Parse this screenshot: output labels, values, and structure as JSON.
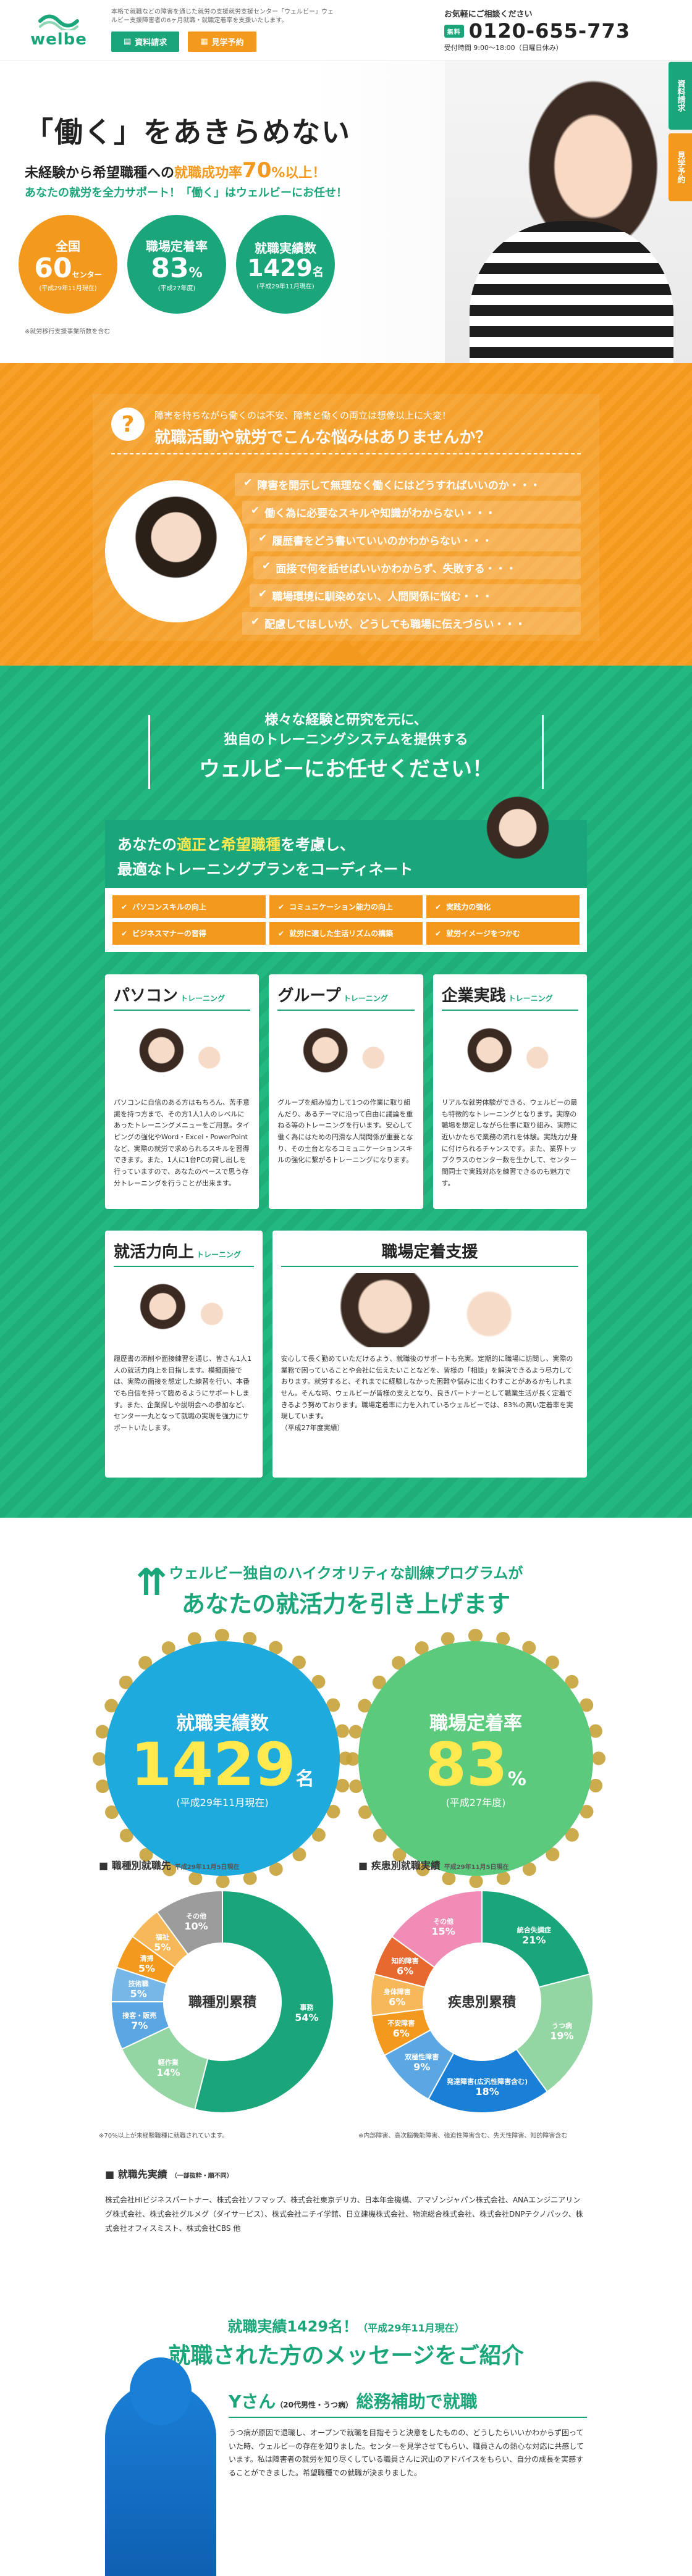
{
  "header": {
    "logo": "welbe",
    "desc": "本格で就職などの障害を通じた就労の支援就労支援センター「ウェルビー」ウェルビー支援障害者の6ヶ月就職・就職定着率を支援いたします。",
    "btn_docs": "資料請求",
    "btn_visit": "見学予約",
    "tel_lead": "お気軽にご相談ください",
    "tel_badge": "無料",
    "tel": "0120-655-773",
    "hours": "受付時間 9:00～18:00（日曜日休み）"
  },
  "side_tabs": [
    "資料請求",
    "見学予約"
  ],
  "hero": {
    "h1": "「働く」をあきらめない",
    "sub_a": "未経験から希望職種への",
    "sub_b": "就職成功率",
    "sub_c": "70",
    "sub_d": "%以上！",
    "sub2": "あなたの就労を全力サポート！「働く」はウェルビーにお任せ！",
    "circles": [
      {
        "label": "全国",
        "value": "60",
        "unit": "センター",
        "note": "(平成29年11月現在)",
        "color": "#f39a1e"
      },
      {
        "label": "職場定着率",
        "value": "83",
        "unit": "%",
        "note": "(平成27年度)",
        "color": "#1aa67a"
      },
      {
        "label": "就職実績数",
        "value": "1429",
        "unit": "名",
        "note": "(平成29年11月現在)",
        "color": "#1aa67a"
      }
    ],
    "foot": "※就労移行支援事業所数を含む"
  },
  "worry": {
    "t1": "障害を持ちながら働くのは不安、障害と働くの両立は想像以上に大変！",
    "t2": "就職活動や就労でこんな悩みはありませんか？",
    "items": [
      "障害を開示して無理なく働くにはどうすればいいのか・・・",
      "働く為に必要なスキルや知識がわからない・・・",
      "履歴書をどう書いていいのかわからない・・・",
      "面接で何を話せばいいかわからず、失敗する・・・",
      "職場環境に馴染めない、人間関係に悩む・・・",
      "配慮してほしいが、どうしても職場に伝えづらい・・・"
    ]
  },
  "training": {
    "t1": "様々な経験と研究を元に、",
    "t2": "独自のトレーニングシステムを提供する",
    "t3": "ウェルビーにお任せください！",
    "coord_a": "あなたの",
    "coord_b": "適正",
    "coord_c": "と",
    "coord_d": "希望職種",
    "coord_e": "を考慮し、",
    "coord_2": "最適なトレーニングプランをコーディネート",
    "grid": [
      "パソコンスキルの向上",
      "コミュニケーション能力の向上",
      "実践力の強化",
      "ビジネスマナーの習得",
      "就労に適した生活リズムの構築",
      "就労イメージをつかむ"
    ],
    "cards": [
      {
        "title": "パソコン",
        "sub": "トレーニング",
        "text": "パソコンに自信のある方はもちろん、苦手意識を持つ方まで、その方1人1人のレベルにあったトレーニングメニューをご用意。タイピングの強化やWord・Excel・PowerPointなど、実際の就労で求められるスキルを習得できます。また、1人に1台PCの貸し出しを行っていますので、あなたのペースで思う存分トレーニングを行うことが出来ます。"
      },
      {
        "title": "グループ",
        "sub": "トレーニング",
        "text": "グループを組み協力して1つの作業に取り組んだり、あるテーマに沿って自由に議論を重ねる等のトレーニングを行います。安心して働く為にはための円滑な人間関係が重要となり、その土台となるコミュニケーションスキルの強化に繋がるトレーニングになります。"
      },
      {
        "title": "企業実践",
        "sub": "トレーニング",
        "text": "リアルな就労体験ができる、ウェルビーの最も特徴的なトレーニングとなります。実際の職場を想定しながら仕事に取り組み、実際に近いかたちで業務の流れを体験。実践力が身に付けられるチャンスです。また、業界トップクラスのセンター数を生かして、センター間同士で実践対応を練習できるのも魅力です。"
      }
    ],
    "card4_title": "就活力向上",
    "card4_sub": "トレーニング",
    "card4_text": "履歴書の添削や面接練習を通じ、皆さん1人1人の就活力向上を目指します。模擬面接では、実際の面接を想定した練習を行い、本番でも自信を持って臨めるようにサポートします。また、企業探しや説明会への参加など、センター一丸となって就職の実現を強力にサポートいたします。",
    "card5_title": "職場定着支援",
    "card5_text": "安心して長く勤めていただけるよう、就職後のサポートも充実。定期的に職場に訪問し、実際の業務で困っていることや会社に伝えたいことなどを、皆様の「相談」を解決できるよう尽力しております。就労すると、それまでに経験しなかった困難や悩みに出くわすことがあるかもしれません。そんな時、ウェルビーが皆様の支えとなり、良きパートナーとして職業生活が長く定着できるよう努めております。職場定着率に力を入れているウェルビーでは、83%の高い定着率を実現しています。",
    "card5_note": "（平成27年度実績）"
  },
  "results": {
    "r1": "ウェルビー独自のハイクオリティな訓練プログラムが",
    "r2": "あなたの就活力を引き上げます",
    "c1_label": "就職実績数",
    "c1_value": "1429",
    "c1_unit": "名",
    "c1_note": "(平成29年11月現在)",
    "c2_label": "職場定着率",
    "c2_value": "83",
    "c2_unit": "%",
    "c2_note": "(平成27年度)",
    "empl_title": "就職先実績",
    "empl_note": "（一部抜粋・順不同）",
    "empl_text": "株式会社HIビジネスパートナー、株式会社ソフマップ、株式会社東京デリカ、日本年金機構、アマゾンジャパン株式会社、ANAエンジニアリング株式会社、株式会社グルメグ（ダイサービス）、株式会社ニチイ学館、日立建機株式会社、物流総合株式会社、株式会社DNPテクノパック、株式会社オフィスミスト、株式会社CBS 他"
  },
  "chart_data": [
    {
      "type": "pie",
      "title": "職種別就職先",
      "subtitle": "平成29年11月5日現在",
      "center_label": "職種別累積",
      "categories": [
        "事務",
        "軽作業",
        "接客・販売",
        "技術職",
        "清掃",
        "福祉",
        "その他"
      ],
      "values": [
        54,
        14,
        7,
        5,
        5,
        5,
        10
      ],
      "colors": [
        "#1aa67a",
        "#93d6a3",
        "#5aa7e3",
        "#76b7e8",
        "#f39a1e",
        "#f7b85a",
        "#9c9c9c"
      ],
      "note": "※70%以上が未経験職種に就職されています。"
    },
    {
      "type": "pie",
      "title": "疾患別就職実績",
      "subtitle": "平成29年11月5日現在",
      "center_label": "疾患別累積",
      "categories": [
        "統合失調症",
        "うつ病",
        "発達障害(広汎性障害含む)",
        "双極性障害",
        "不安障害",
        "身体障害",
        "知的障害",
        "その他"
      ],
      "values": [
        21,
        19,
        18,
        9,
        6,
        6,
        6,
        15
      ],
      "colors": [
        "#1aa67a",
        "#93d6a3",
        "#1a7fd6",
        "#5aa7e3",
        "#f39a1e",
        "#f7b85a",
        "#e66a2f",
        "#f08cb5"
      ],
      "note": "※内部障害、高次脳機能障害、強迫性障害含む、先天性障害、知的障害含む"
    }
  ],
  "messages": {
    "h1": "就職実績1429名！",
    "h1_note": "（平成29年11月現在）",
    "h2": "就職された方のメッセージをご紹介",
    "name": "Yさん",
    "name_sub": "（20代男性・うつ病）",
    "job": "総務補助で就職",
    "text": "うつ病が原因で退職し、オープンで就職を目指そうと決意をしたものの、どうしたらいいかわからず困っていた時、ウェルビーの存在を知りました。センターを見学させてもらい、職員さんの熱心な対応に共感しています。私は障害者の就労を知り尽くしている職員さんに沢山のアドバイスをもらい、自分の成長を実感することができました。希望職種での就職が決まりました。"
  }
}
